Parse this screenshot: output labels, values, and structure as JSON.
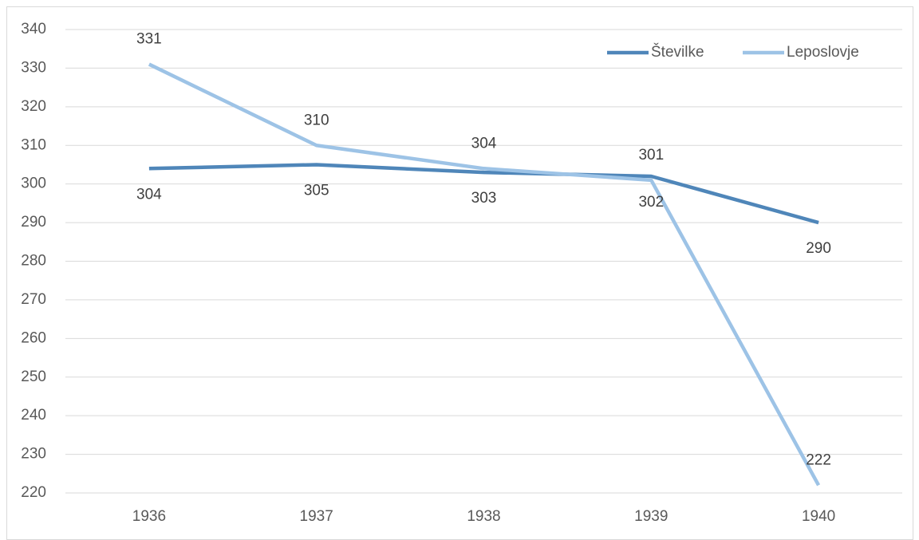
{
  "chart_data": {
    "type": "line",
    "categories": [
      "1936",
      "1937",
      "1938",
      "1939",
      "1940"
    ],
    "series": [
      {
        "name": "Številke",
        "color": "#4f86b9",
        "label_position": "below",
        "values": [
          304,
          305,
          303,
          302,
          290
        ]
      },
      {
        "name": "Leposlovje",
        "color": "#9dc3e6",
        "label_position": "above",
        "values": [
          331,
          310,
          304,
          301,
          222
        ]
      }
    ],
    "ylim": [
      220,
      340
    ],
    "yticks": [
      220,
      230,
      240,
      250,
      260,
      270,
      280,
      290,
      300,
      310,
      320,
      330,
      340
    ],
    "grid": true,
    "legend": "top-right"
  }
}
